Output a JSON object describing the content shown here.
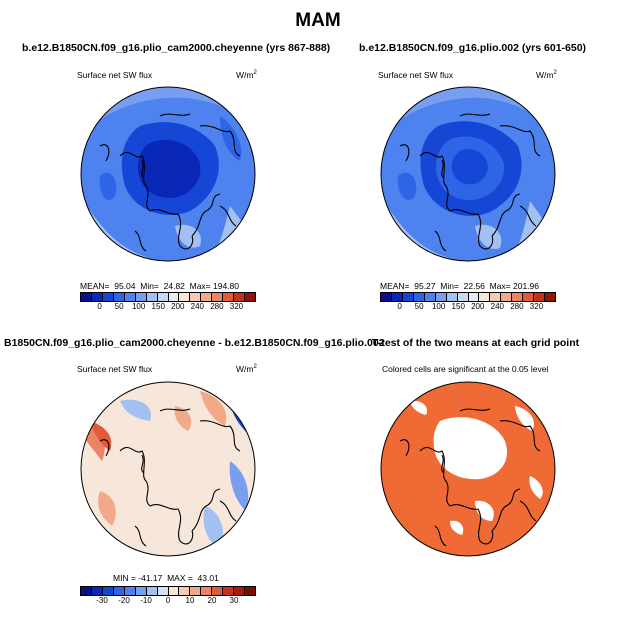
{
  "main_title": "MAM",
  "colors": {
    "abs_scale": [
      "#08108a",
      "#0a28b8",
      "#1546d6",
      "#2e64e6",
      "#4d82ef",
      "#789fef",
      "#a3c0f2",
      "#c9d8f3",
      "#e6ecf2",
      "#f7e6da",
      "#f5cbb2",
      "#f2a98a",
      "#ec8462",
      "#e25a3a",
      "#c6301e",
      "#8f1508"
    ],
    "diff_scale": [
      "#08108a",
      "#0a28b8",
      "#1546d6",
      "#2e64e6",
      "#4d82ef",
      "#789fef",
      "#a3c0f2",
      "#d6e2f2",
      "#f7e6da",
      "#f5cbb2",
      "#f2a98a",
      "#ec8462",
      "#e25a3a",
      "#c6301e",
      "#a31c0c",
      "#7a0d04"
    ],
    "signif": "#f06a35"
  },
  "panels": {
    "p1": {
      "title": "b.e12.B1850CN.f09_g16.plio_cam2000.cheyenne (yrs 867-888)",
      "left_label": "Surface net SW flux",
      "right_label": "W/m",
      "right_sup": "2",
      "stats": "MEAN=  95.04  Min=  24.82  Max= 194.80",
      "ticks": [
        "0",
        "50",
        "100",
        "150",
        "200",
        "240",
        "280",
        "320"
      ]
    },
    "p2": {
      "title": "b.e12.B1850CN.f09_g16.plio.002 (yrs 601-650)",
      "left_label": "Surface net SW flux",
      "right_label": "W/m",
      "right_sup": "2",
      "stats": "MEAN=  95.27  Min=  22.56  Max= 201.96",
      "ticks": [
        "0",
        "50",
        "100",
        "150",
        "200",
        "240",
        "280",
        "320"
      ]
    },
    "p3": {
      "title": "B1850CN.f09_g16.plio_cam2000.cheyenne - b.e12.B1850CN.f09_g16.plio.002",
      "left_label": "Surface net SW flux",
      "right_label": "W/m",
      "right_sup": "2",
      "stats": "MIN = -41.17  MAX =  43.01",
      "ticks": [
        "-30",
        "-20",
        "-10",
        "0",
        "10",
        "20",
        "30"
      ]
    },
    "p4": {
      "title": "T-test of the two means at each grid point",
      "note": "Colored cells are significant at the 0.05 level"
    }
  }
}
